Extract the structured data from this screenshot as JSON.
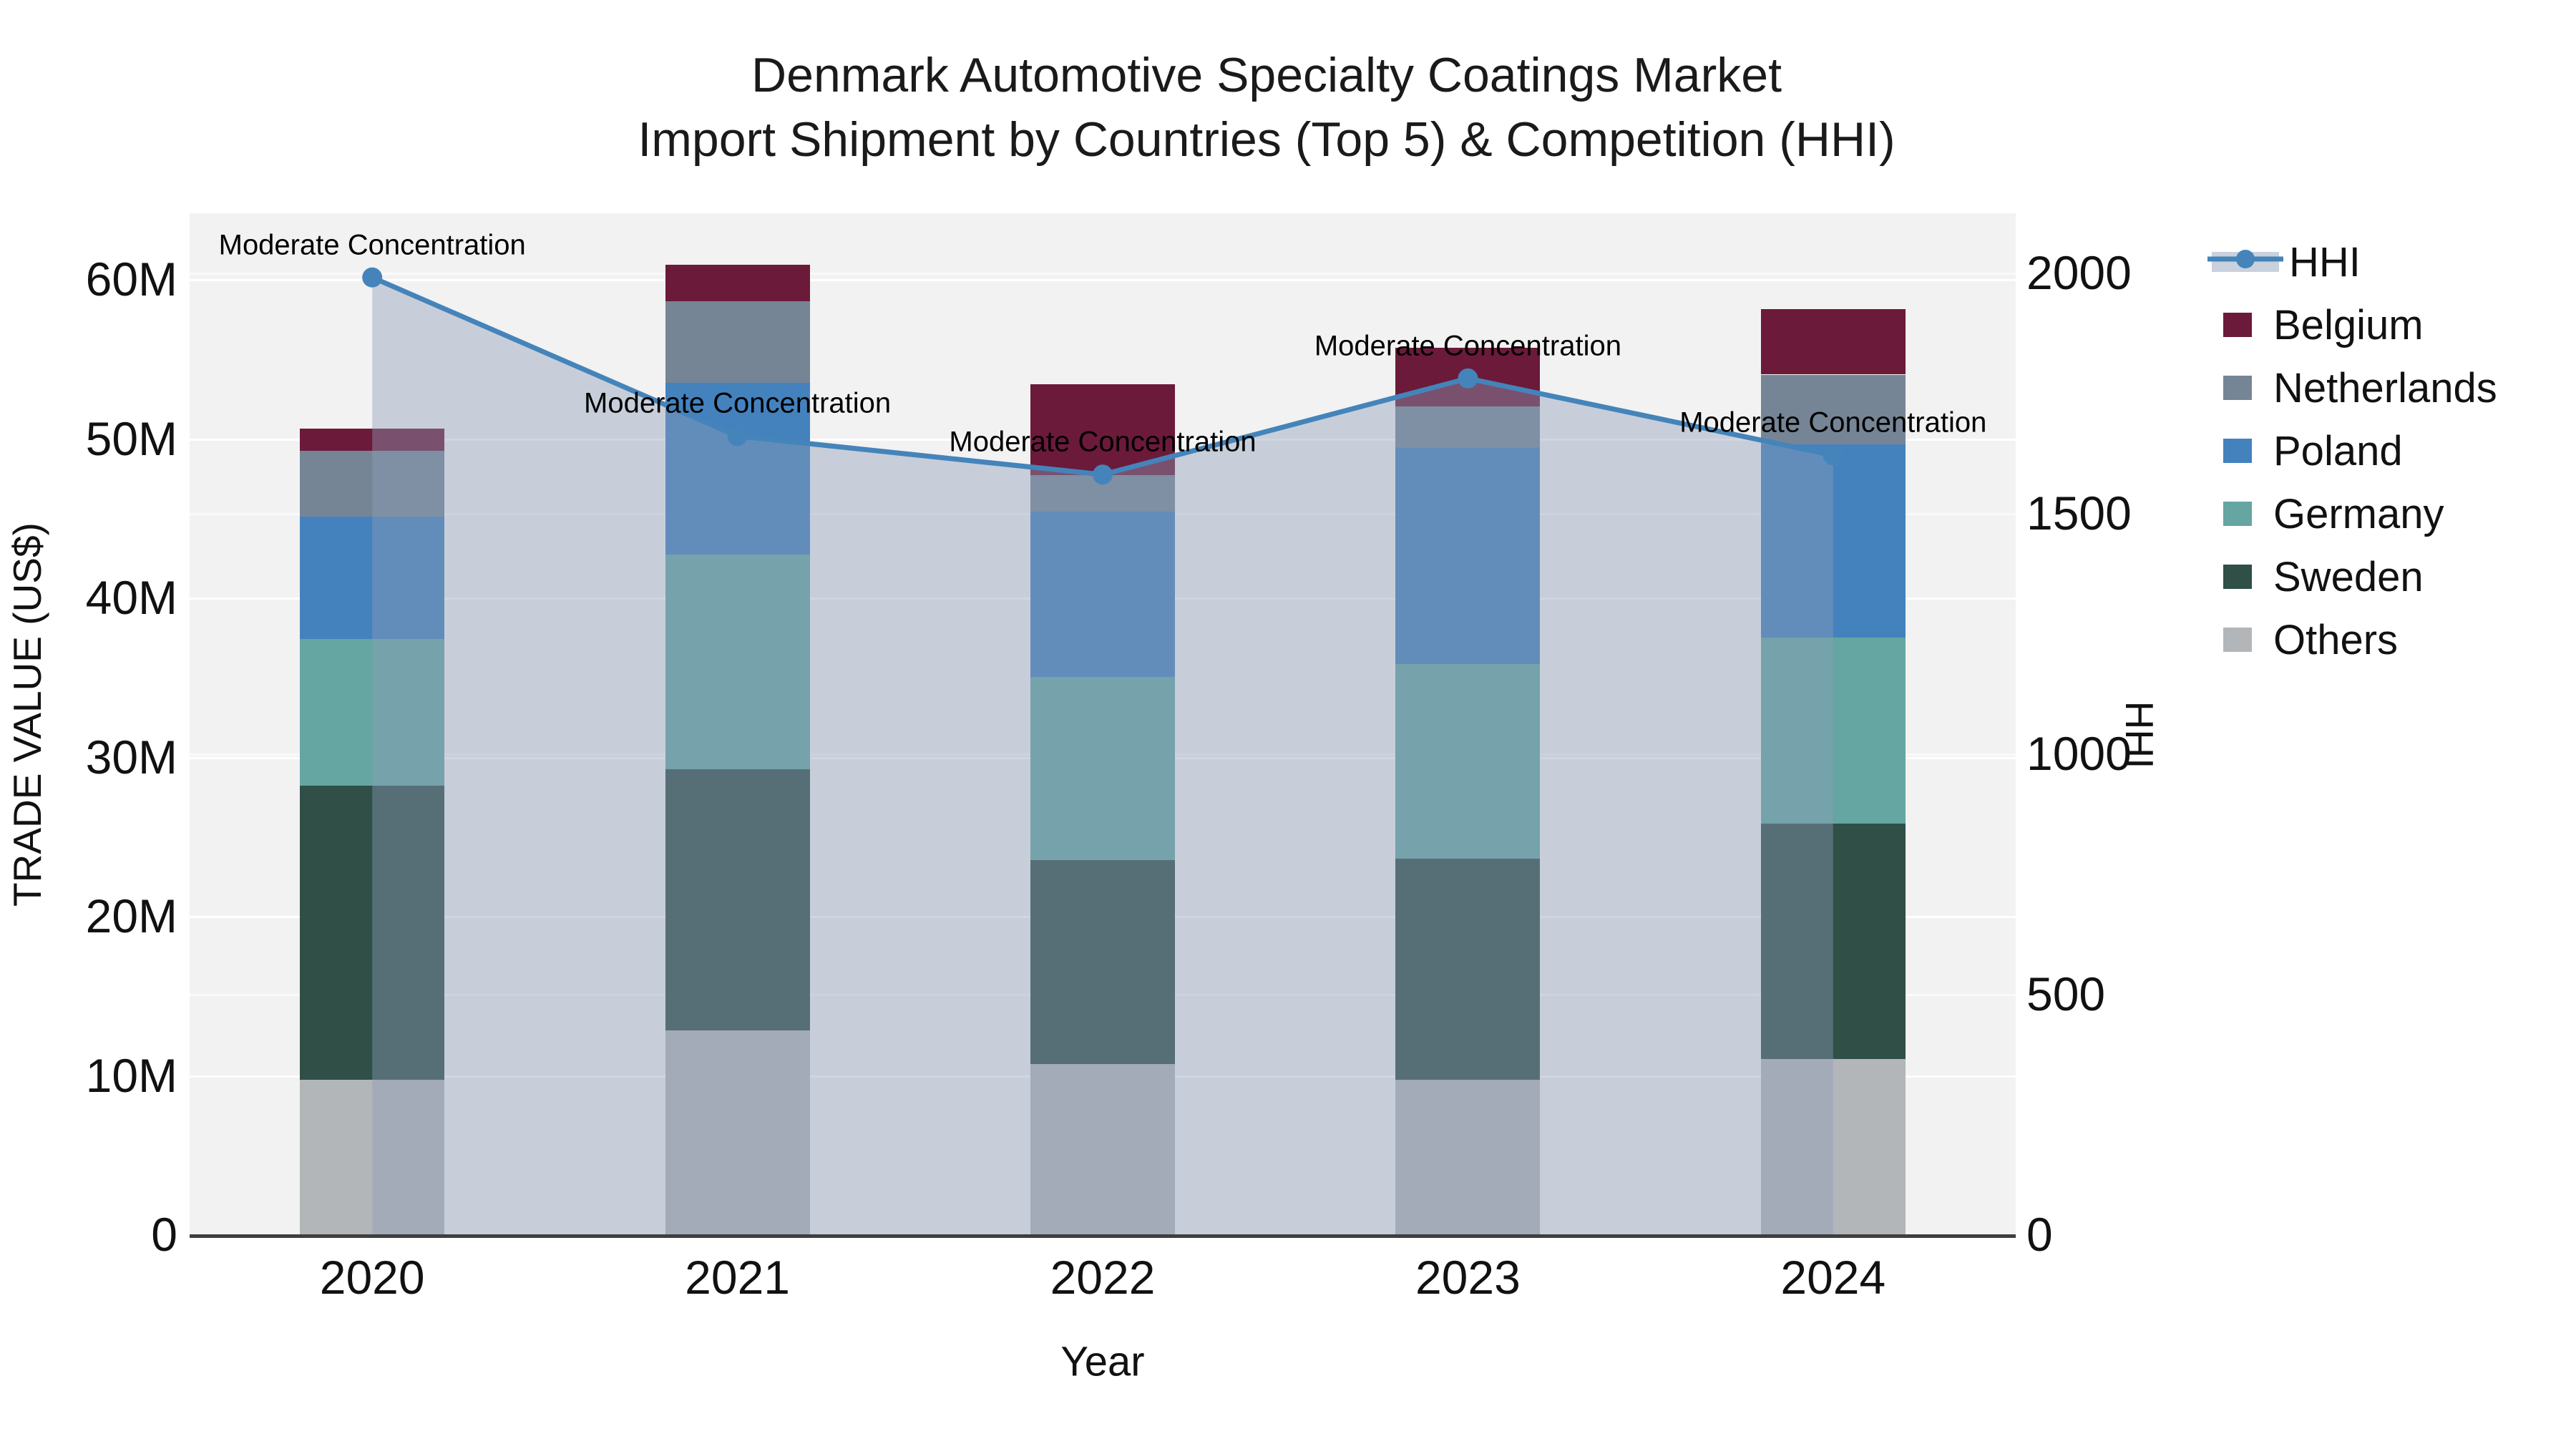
{
  "title": {
    "line1": "Denmark Automotive Specialty Coatings Market",
    "line2": "Import Shipment by Countries (Top 5) & Competition (HHI)"
  },
  "axes": {
    "x": {
      "title": "Year",
      "labels": [
        "2020",
        "2021",
        "2022",
        "2023",
        "2024"
      ]
    },
    "left": {
      "title": "TRADE VALUE (US$)",
      "tick_labels": [
        "0",
        "10M",
        "20M",
        "30M",
        "40M",
        "50M",
        "60M"
      ],
      "tick_values_m": [
        0,
        10,
        20,
        30,
        40,
        50,
        60
      ]
    },
    "right": {
      "title": "HHI",
      "tick_labels": [
        "0",
        "500",
        "1000",
        "1500",
        "2000"
      ],
      "tick_values": [
        0,
        500,
        1000,
        1500,
        2000
      ]
    }
  },
  "annotation_text": "Moderate Concentration",
  "colors": {
    "page_bg": "#ffffff",
    "plot_bg": "#f2f2f2",
    "gridline": "#ffffff",
    "axis_line": "#3f3f3f",
    "text": "#111111",
    "hhi_line": "#4484BA",
    "hhi_area_fill": "rgba(141,158,183,0.42)",
    "legend_band": "#c9d1dd"
  },
  "legend_order": [
    "HHI",
    "Belgium",
    "Netherlands",
    "Poland",
    "Germany",
    "Sweden",
    "Others"
  ],
  "chart_data": {
    "type": "bar",
    "subtype": "stacked-bar-with-line-overlay",
    "title": "Denmark Automotive Specialty Coatings Market — Import Shipment by Countries (Top 5) & Competition (HHI)",
    "categories": [
      "2020",
      "2021",
      "2022",
      "2023",
      "2024"
    ],
    "stack_order_bottom_to_top": [
      "Others",
      "Sweden",
      "Germany",
      "Poland",
      "Netherlands",
      "Belgium"
    ],
    "series": [
      {
        "name": "Others",
        "color": "#B3B6B8",
        "values_musd": [
          9.7,
          12.8,
          10.7,
          9.7,
          11.0
        ]
      },
      {
        "name": "Sweden",
        "color": "#2F4F47",
        "values_musd": [
          18.5,
          16.4,
          12.8,
          13.9,
          14.8
        ]
      },
      {
        "name": "Germany",
        "color": "#65A5A2",
        "values_musd": [
          9.2,
          13.5,
          11.5,
          12.2,
          11.7
        ]
      },
      {
        "name": "Poland",
        "color": "#4482BE",
        "values_musd": [
          7.7,
          10.8,
          10.4,
          13.6,
          12.1
        ]
      },
      {
        "name": "Netherlands",
        "color": "#768596",
        "values_musd": [
          4.1,
          5.1,
          2.3,
          2.6,
          4.4
        ]
      },
      {
        "name": "Belgium",
        "color": "#6B1A3A",
        "values_musd": [
          1.4,
          2.3,
          5.7,
          3.7,
          4.1
        ]
      }
    ],
    "bar_totals_musd": [
      50.6,
      60.9,
      53.4,
      55.7,
      58.1
    ],
    "line_series": {
      "name": "HHI",
      "axis": "right",
      "color": "#4484BA",
      "values": [
        1990,
        1660,
        1580,
        1780,
        1620
      ],
      "area_fill": "rgba(141,158,183,0.42)",
      "point_annotations": [
        "Moderate Concentration",
        "Moderate Concentration",
        "Moderate Concentration",
        "Moderate Concentration",
        "Moderate Concentration"
      ]
    },
    "xlabel": "Year",
    "ylabel_left": "TRADE VALUE (US$)",
    "ylabel_right": "HHI",
    "ylim_left_musd": [
      0,
      64.1
    ],
    "ylim_right": [
      0,
      2005
    ],
    "grid": true,
    "legend_position": "right"
  }
}
